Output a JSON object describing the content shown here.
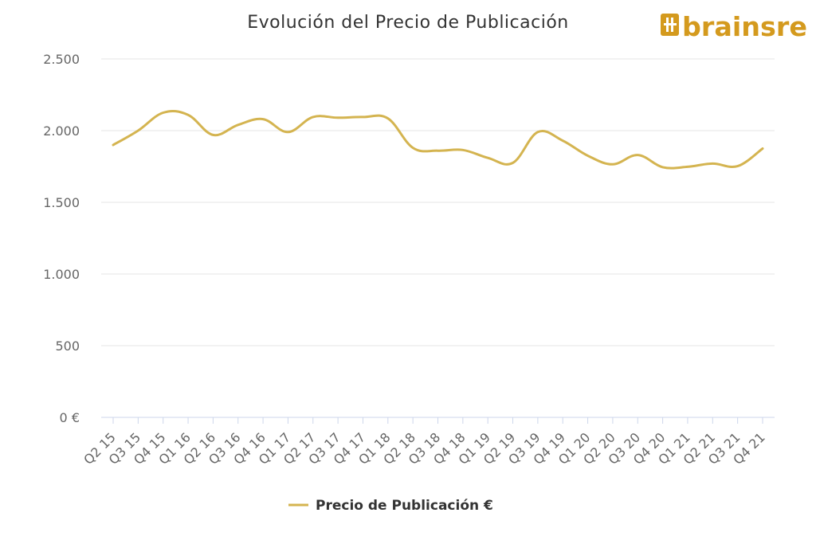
{
  "brand": {
    "logo_text": "brainsre",
    "color": "#d49a1e"
  },
  "chart_data": {
    "type": "line",
    "title": "Evolución del Precio de Publicación",
    "xlabel": "",
    "ylabel": "",
    "ylim": [
      0,
      2500
    ],
    "yticks": [
      0,
      500,
      1000,
      1500,
      2000,
      2500
    ],
    "ytick_labels": [
      "0 €",
      "500",
      "1.000",
      "1.500",
      "2.000",
      "2.500"
    ],
    "grid": true,
    "legend": "bottom-center",
    "categories": [
      "Q2 15",
      "Q3 15",
      "Q4 15",
      "Q1 16",
      "Q2 16",
      "Q3 16",
      "Q4 16",
      "Q1 17",
      "Q2 17",
      "Q3 17",
      "Q4 17",
      "Q1 18",
      "Q2 18",
      "Q3 18",
      "Q4 18",
      "Q1 19",
      "Q2 19",
      "Q3 19",
      "Q4 19",
      "Q1 20",
      "Q2 20",
      "Q3 20",
      "Q4 20",
      "Q1 21",
      "Q2 21",
      "Q3 21",
      "Q4 21"
    ],
    "series": [
      {
        "name": "Precio de Publicación €",
        "color": "#d4b450",
        "values": [
          1900,
          2000,
          2125,
          2110,
          1970,
          2040,
          2080,
          1990,
          2095,
          2090,
          2095,
          2085,
          1880,
          1860,
          1865,
          1810,
          1775,
          1990,
          1930,
          1825,
          1765,
          1830,
          1745,
          1748,
          1770,
          1752,
          1875
        ]
      }
    ]
  }
}
